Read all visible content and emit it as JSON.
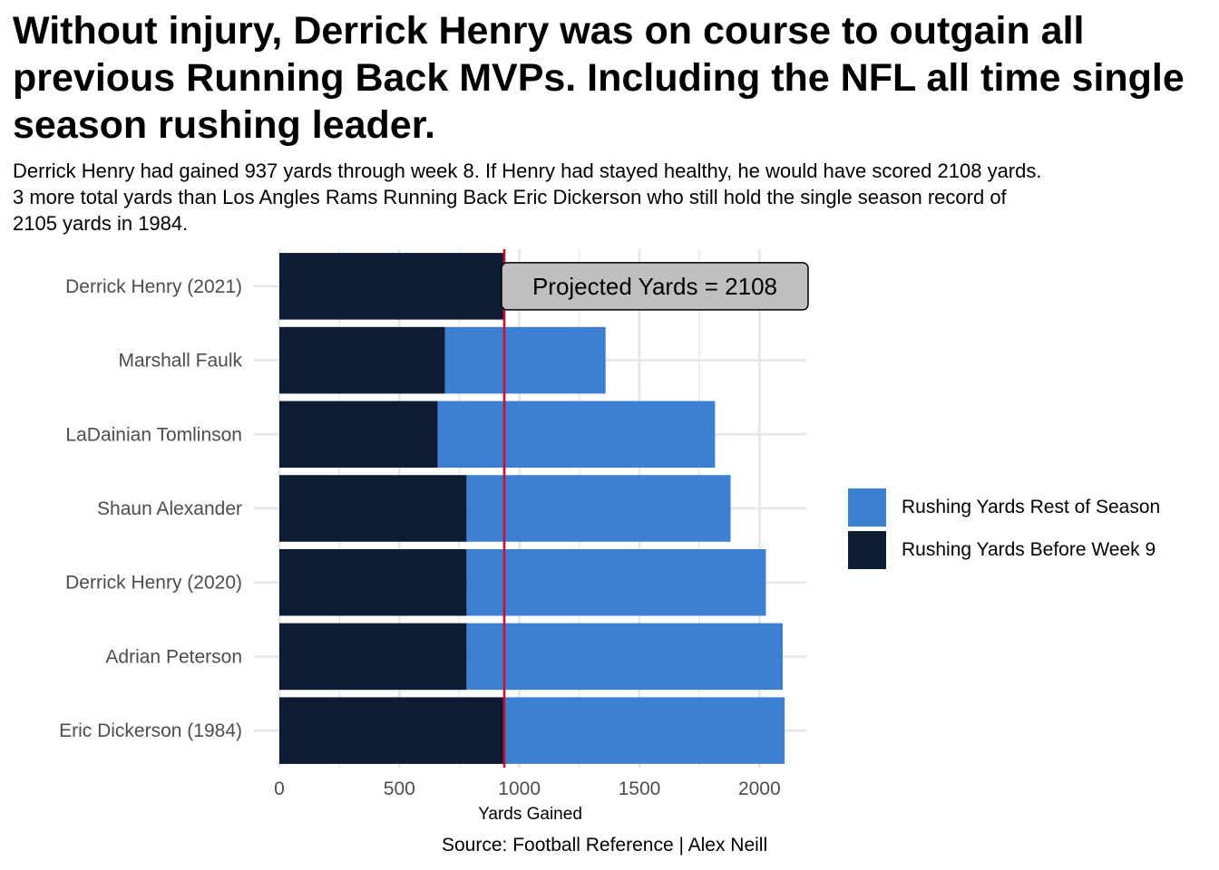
{
  "title": "Without injury, Derrick Henry was on course to outgain all previous Running Back MVPs. Including the NFL all time single season rushing leader.",
  "subtitle": "Derrick Henry had gained 937 yards through week 8. If Henry had stayed healthy, he would have scored 2108 yards.\n3 more total yards than Los Angles Rams Running Back Eric Dickerson who still hold the single season record of\n2105 yards in 1984.",
  "caption": "Source: Football Reference | Alex Neill",
  "colors": {
    "before": "#0d1b33",
    "rest": "#3c7fd3",
    "reference_line": "#c8102e",
    "grid": "#e6e6e6",
    "annotation_fill": "#bfbfbf"
  },
  "legend": [
    {
      "label": "Rushing Yards Rest of Season",
      "color": "#3c7fd3"
    },
    {
      "label": "Rushing Yards Before Week 9",
      "color": "#0d1b33"
    }
  ],
  "chart_data": {
    "type": "bar",
    "orientation": "horizontal",
    "stacked": true,
    "categories": [
      "Derrick Henry (2021)",
      "Marshall Faulk",
      "LaDainian Tomlinson",
      "Shaun Alexander",
      "Derrick Henry (2020)",
      "Adrian Peterson",
      "Eric Dickerson (1984)"
    ],
    "series": [
      {
        "name": "Rushing Yards Before Week 9",
        "values": [
          937,
          690,
          660,
          780,
          780,
          780,
          937
        ]
      },
      {
        "name": "Rushing Yards Rest of Season",
        "values": [
          0,
          669,
          1155,
          1100,
          1247,
          1317,
          1168
        ]
      }
    ],
    "xlabel": "Yards Gained",
    "ylabel": "",
    "xlim": [
      0,
      2200
    ],
    "xticks": [
      0,
      500,
      1000,
      1500,
      2000
    ],
    "grid": true,
    "legend_position": "right",
    "reference_line": {
      "x": 937
    },
    "annotation": {
      "text": "Projected Yards = 2108",
      "x": 937,
      "category": "Derrick Henry (2021)"
    }
  }
}
